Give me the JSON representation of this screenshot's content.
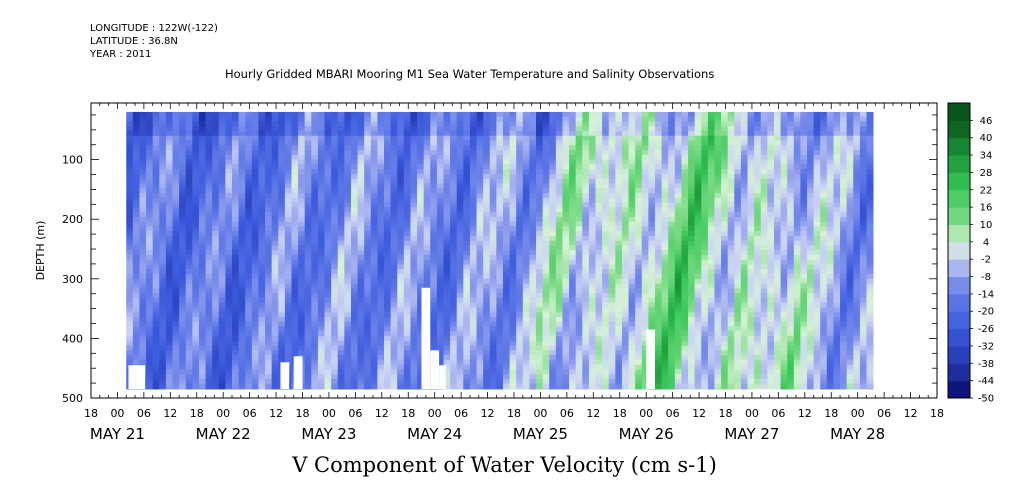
{
  "meta": {
    "longitude": "LONGITUDE : 122W(-122)",
    "latitude": "LATITUDE : 36.8N",
    "year": "YEAR : 2011"
  },
  "chart_data": {
    "type": "heatmap",
    "title": "Hourly Gridded MBARI Mooring M1 Sea Water Temperature and Salinity Observations",
    "xlabel": "V Component of Water Velocity (cm s-1)",
    "ylabel": "DEPTH (m)",
    "y_reversed": true,
    "ylim": [
      500,
      5
    ],
    "y_ticks": [
      100,
      200,
      300,
      400,
      500
    ],
    "x_range_hours": [
      "May 20 18:00",
      "May 28 18:00"
    ],
    "x_hour_ticks": [
      "18",
      "00",
      "06",
      "12",
      "18",
      "00",
      "06",
      "12",
      "18",
      "00",
      "06",
      "12",
      "18",
      "00",
      "06",
      "12",
      "18",
      "00",
      "06",
      "12",
      "18",
      "00",
      "06",
      "12",
      "18",
      "00",
      "06",
      "12",
      "18",
      "00",
      "06",
      "12",
      "18"
    ],
    "x_day_labels": [
      "MAY 21",
      "MAY 22",
      "MAY 23",
      "MAY 24",
      "MAY 25",
      "MAY 26",
      "MAY 27",
      "MAY 28"
    ],
    "data_extent": {
      "start": "May 21 02:00",
      "end": "May 28 03:00",
      "depth_min": 20,
      "depth_max": 485
    },
    "colorbar": {
      "levels": [
        -50,
        -44,
        -38,
        -32,
        -26,
        -20,
        -14,
        -8,
        -2,
        4,
        10,
        16,
        22,
        28,
        34,
        40,
        46
      ],
      "labels": [
        "46",
        "40",
        "34",
        "28",
        "22",
        "16",
        "10",
        "4",
        "-2",
        "-8",
        "-14",
        "-20",
        "-26",
        "-32",
        "-38",
        "-44",
        "-50"
      ]
    },
    "pattern_by_day": [
      {
        "day": "MAY 21",
        "mean_v": -16
      },
      {
        "day": "MAY 22",
        "mean_v": -18
      },
      {
        "day": "MAY 23",
        "mean_v": -12
      },
      {
        "day": "MAY 24",
        "mean_v": -14
      },
      {
        "day": "MAY 25",
        "mean_v": -6
      },
      {
        "day": "MAY 26",
        "mean_v": 8
      },
      {
        "day": "MAY 27",
        "mean_v": 4
      },
      {
        "day": "MAY 28",
        "mean_v": -10
      }
    ],
    "colors": {
      "negative": "#5a6ee0",
      "near_zero": "#c8d0f4",
      "positive": "#3ccc5a"
    }
  }
}
